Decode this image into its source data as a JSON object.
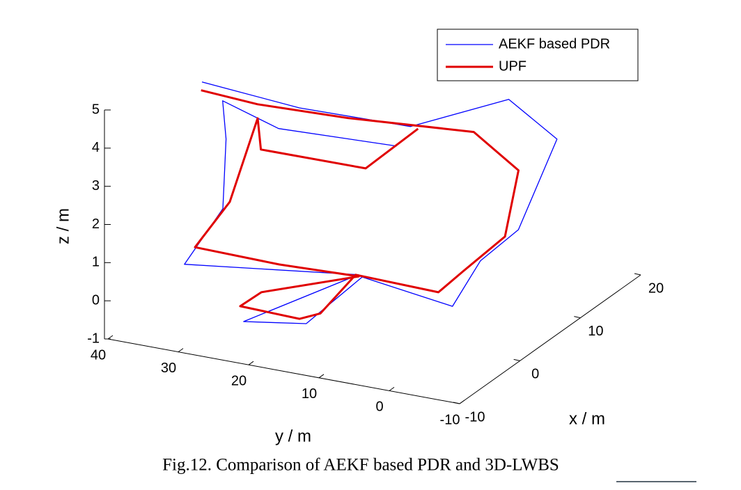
{
  "chart_data": {
    "type": "line3d",
    "caption": "Fig.12. Comparison of AEKF based PDR and 3D-LWBS",
    "xlabel": "x / m",
    "ylabel": "y / m",
    "zlabel": "z / m",
    "xlim": [
      -10,
      20
    ],
    "ylim": [
      -10,
      40
    ],
    "zlim": [
      -1,
      5
    ],
    "xticks": [
      -10,
      0,
      10,
      20
    ],
    "yticks": [
      -10,
      0,
      10,
      20,
      30,
      40
    ],
    "zticks": [
      -1,
      0,
      1,
      2,
      3,
      4,
      5
    ],
    "legend": "top-right",
    "series": [
      {
        "name": "AEKF based PDR",
        "color": "#0000ff",
        "x": [
          -5.15,
          -3.8,
          -2.05,
          3.5,
          5.55,
          1.6,
          0.9,
          -1.4,
          -3.3,
          -5.35,
          -7.1,
          -3.0,
          -7.7,
          -5.3,
          -6.4,
          -5.1,
          -4.8,
          -1.2
        ],
        "y": [
          30.8,
          18.1,
          3.8,
          -5.4,
          -10.5,
          -8.4,
          -3.6,
          -1.6,
          9.6,
          15.8,
          23.2,
          10.4,
          31.1,
          27.7,
          26.3,
          27.9,
          20.2,
          6.5
        ],
        "z": [
          5.5,
          5.1,
          4.9,
          5.3,
          4.2,
          2.2,
          1.3,
          0.3,
          0.9,
          -0.3,
          -0.3,
          0.9,
          1.0,
          2.3,
          4.3,
          5.1,
          4.6,
          4.2
        ]
      },
      {
        "name": "UPF",
        "color": "#e00000",
        "x": [
          -5.3,
          -3.85,
          -2.6,
          -0.2,
          -0.13,
          -2.25,
          -0.95,
          -1.4,
          -3.1,
          -5.1,
          -6.1,
          -7.2,
          -6.0,
          -3.3,
          -4.5,
          -6.3,
          -3.8,
          -3.6,
          -6.45,
          -2.85,
          -2.2
        ],
        "y": [
          30.8,
          24.0,
          12.2,
          -3.6,
          -9.9,
          -9.8,
          -2.7,
          0.4,
          10.7,
          14.0,
          16.1,
          23.6,
          21.6,
          10.1,
          20.4,
          30.8,
          28.0,
          24.2,
          21.3,
          9.5,
          2.6
        ],
        "z": [
          5.3,
          5.0,
          4.9,
          4.8,
          4.0,
          2.5,
          1.2,
          0.6,
          0.9,
          0.0,
          -0.1,
          0.1,
          0.4,
          0.9,
          1.0,
          1.3,
          2.3,
          4.6,
          4.2,
          3.7,
          4.9
        ]
      }
    ]
  }
}
